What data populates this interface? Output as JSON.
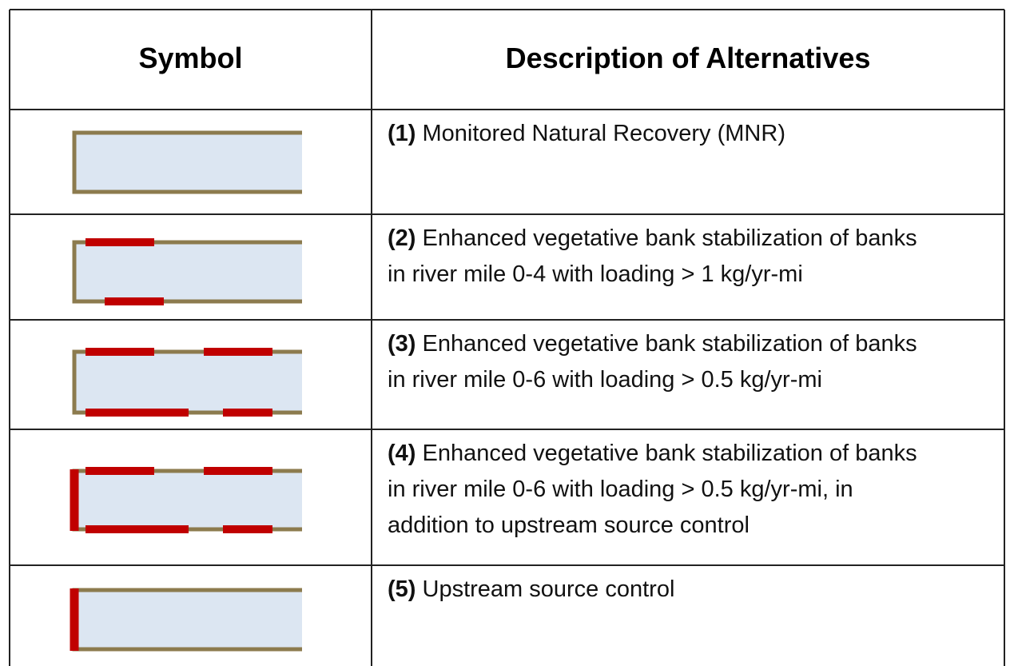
{
  "header": {
    "symbol": "Symbol",
    "description": "Description of Alternatives"
  },
  "rows": [
    {
      "label": "(1)",
      "lines": [
        "Monitored Natural Recovery (MNR)"
      ]
    },
    {
      "label": "(2)",
      "lines": [
        "Enhanced vegetative bank stabilization of banks",
        "in river mile 0-4 with loading > 1 kg/yr-mi"
      ]
    },
    {
      "label": "(3)",
      "lines": [
        "Enhanced vegetative bank stabilization of banks",
        "in river mile 0-6 with loading > 0.5 kg/yr-mi"
      ]
    },
    {
      "label": "(4)",
      "lines": [
        "Enhanced vegetative bank stabilization of banks",
        "in river mile 0-6 with loading > 0.5 kg/yr-mi, in",
        "addition to upstream source control"
      ]
    },
    {
      "label": "(5)",
      "lines": [
        "Upstream source control"
      ]
    }
  ]
}
